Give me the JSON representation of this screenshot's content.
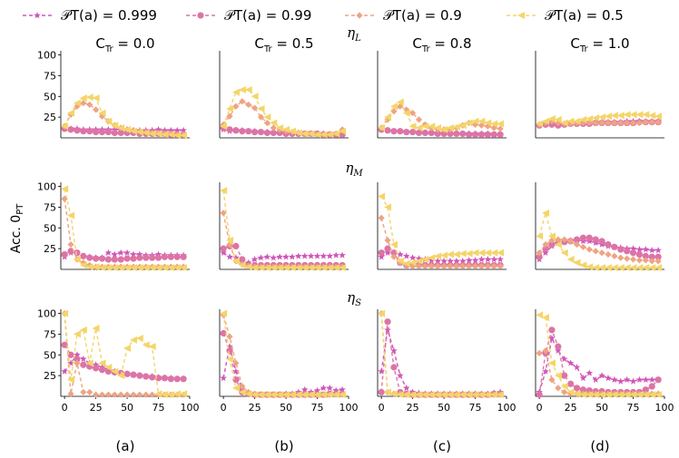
{
  "chart_data": {
    "type": "line",
    "ylabel": "Acc. 0_PT",
    "legend_position": "top",
    "x": [
      0,
      5,
      10,
      15,
      20,
      25,
      30,
      35,
      40,
      45,
      50,
      55,
      60,
      65,
      70,
      75,
      80,
      85,
      90,
      95
    ],
    "xlim": [
      -3,
      100
    ],
    "xticks": [
      0,
      25,
      50,
      75,
      100
    ],
    "ylim": [
      0,
      105
    ],
    "yticks": [
      25,
      50,
      75,
      100
    ],
    "series_meta": [
      {
        "name": "P_T(a) = 0.999",
        "legend_label": "𝒫T(a) = 0.999",
        "color": "#d056b8",
        "marker": "star"
      },
      {
        "name": "P_T(a) = 0.99",
        "legend_label": "𝒫T(a) = 0.99",
        "color": "#dc74a6",
        "marker": "circle"
      },
      {
        "name": "P_T(a) = 0.9",
        "legend_label": "𝒫T(a) = 0.9",
        "color": "#eea483",
        "marker": "diamond"
      },
      {
        "name": "P_T(a) = 0.5",
        "legend_label": "𝒫T(a) = 0.5",
        "color": "#f4d569",
        "marker": "triangle-left"
      }
    ],
    "column_titles": [
      "C_Tr = 0.0",
      "C_Tr = 0.5",
      "C_Tr = 0.8",
      "C_Tr = 1.0"
    ],
    "row_titles": [
      "η_L",
      "η_M",
      "η_S"
    ],
    "panel_labels": [
      "(a)",
      "(b)",
      "(c)",
      "(d)"
    ],
    "panels": [
      [
        [
          [
            12,
            11,
            11,
            10,
            10,
            10,
            10,
            10,
            10,
            10,
            10,
            9,
            9,
            9,
            9,
            10,
            9,
            9,
            9,
            9
          ],
          [
            11,
            10,
            9,
            8,
            8,
            7,
            7,
            7,
            6,
            6,
            6,
            6,
            5,
            5,
            5,
            5,
            5,
            4,
            4,
            4
          ],
          [
            14,
            28,
            38,
            42,
            40,
            34,
            26,
            20,
            15,
            12,
            10,
            9,
            8,
            7,
            6,
            6,
            5,
            5,
            4,
            4
          ],
          [
            14,
            30,
            42,
            48,
            49,
            48,
            30,
            20,
            15,
            12,
            10,
            8,
            7,
            6,
            5,
            5,
            4,
            4,
            3,
            3
          ]
        ],
        [
          [
            10,
            8,
            9,
            9,
            8,
            8,
            7,
            7,
            6,
            6,
            6,
            6,
            5,
            5,
            5,
            5,
            5,
            4,
            4,
            4
          ],
          [
            12,
            10,
            9,
            8,
            8,
            7,
            7,
            6,
            6,
            6,
            5,
            5,
            5,
            5,
            5,
            5,
            4,
            4,
            4,
            4
          ],
          [
            16,
            26,
            38,
            44,
            40,
            36,
            25,
            18,
            12,
            10,
            8,
            7,
            6,
            5,
            5,
            4,
            4,
            4,
            5,
            10
          ],
          [
            14,
            35,
            55,
            58,
            58,
            50,
            35,
            25,
            18,
            12,
            10,
            8,
            6,
            5,
            5,
            4,
            4,
            4,
            5,
            8
          ]
        ],
        [
          [
            10,
            9,
            8,
            8,
            7,
            7,
            7,
            6,
            6,
            6,
            5,
            5,
            5,
            5,
            5,
            5,
            5,
            5,
            4,
            4
          ],
          [
            10,
            9,
            8,
            8,
            7,
            7,
            6,
            6,
            6,
            5,
            5,
            5,
            5,
            5,
            4,
            4,
            4,
            4,
            4,
            4
          ],
          [
            12,
            22,
            32,
            38,
            34,
            30,
            22,
            16,
            12,
            10,
            10,
            10,
            12,
            15,
            18,
            16,
            15,
            14,
            12,
            11
          ],
          [
            12,
            25,
            38,
            43,
            30,
            14,
            12,
            14,
            14,
            12,
            10,
            12,
            13,
            15,
            18,
            20,
            20,
            18,
            17,
            17
          ]
        ],
        [
          [
            15,
            17,
            17,
            16,
            17,
            18,
            18,
            18,
            19,
            19,
            19,
            19,
            19,
            19,
            20,
            20,
            20,
            20,
            20,
            20
          ],
          [
            15,
            16,
            16,
            15,
            16,
            17,
            17,
            17,
            17,
            18,
            18,
            18,
            18,
            18,
            18,
            18,
            19,
            19,
            19,
            19
          ],
          [
            16,
            18,
            20,
            18,
            17,
            17,
            18,
            18,
            18,
            18,
            18,
            18,
            18,
            18,
            18,
            18,
            18,
            19,
            19,
            19
          ],
          [
            17,
            20,
            23,
            22,
            18,
            20,
            20,
            22,
            23,
            24,
            25,
            26,
            27,
            27,
            28,
            28,
            28,
            28,
            27,
            26
          ]
        ]
      ],
      [
        [
          [
            15,
            20,
            19,
            16,
            15,
            14,
            14,
            20,
            18,
            20,
            20,
            18,
            18,
            17,
            17,
            18,
            17,
            17,
            17,
            17
          ],
          [
            18,
            22,
            20,
            16,
            14,
            13,
            13,
            12,
            12,
            12,
            13,
            13,
            14,
            14,
            14,
            14,
            15,
            15,
            15,
            15
          ],
          [
            85,
            30,
            12,
            8,
            5,
            3,
            3,
            3,
            3,
            3,
            3,
            3,
            3,
            3,
            3,
            3,
            3,
            3,
            3,
            3
          ],
          [
            97,
            65,
            12,
            5,
            3,
            3,
            2,
            2,
            2,
            2,
            2,
            2,
            2,
            2,
            2,
            2,
            2,
            2,
            2,
            2
          ]
        ],
        [
          [
            20,
            15,
            14,
            10,
            8,
            12,
            14,
            15,
            14,
            15,
            15,
            15,
            16,
            16,
            16,
            16,
            16,
            16,
            17,
            17
          ],
          [
            25,
            28,
            28,
            12,
            5,
            5,
            5,
            5,
            5,
            5,
            5,
            5,
            5,
            5,
            5,
            5,
            5,
            5,
            5,
            5
          ],
          [
            68,
            30,
            10,
            6,
            4,
            3,
            3,
            3,
            3,
            3,
            3,
            3,
            3,
            3,
            3,
            3,
            3,
            3,
            3,
            3
          ],
          [
            95,
            35,
            10,
            5,
            3,
            2,
            2,
            2,
            2,
            2,
            2,
            2,
            2,
            2,
            2,
            2,
            2,
            2,
            2,
            2
          ]
        ],
        [
          [
            15,
            20,
            20,
            18,
            16,
            14,
            13,
            12,
            11,
            10,
            10,
            10,
            10,
            10,
            11,
            11,
            12,
            12,
            12,
            12
          ],
          [
            20,
            25,
            20,
            8,
            5,
            5,
            5,
            5,
            5,
            5,
            5,
            5,
            5,
            5,
            5,
            5,
            5,
            5,
            5,
            5
          ],
          [
            62,
            35,
            15,
            8,
            5,
            4,
            4,
            4,
            4,
            4,
            4,
            4,
            4,
            4,
            4,
            4,
            4,
            4,
            4,
            4
          ],
          [
            88,
            75,
            30,
            10,
            7,
            8,
            10,
            12,
            14,
            16,
            17,
            18,
            18,
            19,
            19,
            20,
            20,
            20,
            20,
            20
          ]
        ],
        [
          [
            12,
            20,
            28,
            32,
            34,
            35,
            35,
            34,
            34,
            32,
            30,
            28,
            27,
            26,
            25,
            25,
            24,
            24,
            23,
            23
          ],
          [
            15,
            25,
            30,
            32,
            33,
            34,
            36,
            38,
            38,
            36,
            34,
            30,
            27,
            24,
            22,
            20,
            18,
            16,
            15,
            15
          ],
          [
            20,
            30,
            35,
            36,
            36,
            34,
            30,
            27,
            24,
            22,
            20,
            18,
            16,
            14,
            13,
            12,
            11,
            11,
            10,
            10
          ],
          [
            40,
            68,
            40,
            30,
            20,
            12,
            8,
            5,
            3,
            2,
            2,
            2,
            2,
            2,
            2,
            2,
            2,
            2,
            2,
            2
          ]
        ]
      ],
      [
        [
          [
            30,
            40,
            50,
            45,
            40,
            38,
            35,
            32,
            30,
            28,
            27,
            26,
            25,
            24,
            24,
            23,
            22,
            22,
            21,
            21
          ],
          [
            62,
            50,
            45,
            38,
            36,
            34,
            32,
            30,
            29,
            28,
            27,
            26,
            25,
            24,
            23,
            22,
            22,
            21,
            21,
            21
          ],
          [
            100,
            3,
            40,
            5,
            5,
            2,
            2,
            2,
            2,
            2,
            2,
            2,
            2,
            2,
            2,
            2,
            2,
            2,
            2,
            2
          ],
          [
            100,
            20,
            75,
            80,
            40,
            82,
            40,
            35,
            30,
            25,
            58,
            68,
            70,
            62,
            60,
            3,
            2,
            2,
            3,
            3
          ]
        ],
        [
          [
            22,
            60,
            30,
            8,
            3,
            2,
            2,
            2,
            2,
            2,
            3,
            3,
            5,
            8,
            5,
            7,
            10,
            10,
            7,
            8
          ],
          [
            76,
            55,
            20,
            5,
            3,
            2,
            2,
            2,
            2,
            2,
            2,
            2,
            2,
            2,
            2,
            2,
            2,
            3,
            3,
            3
          ],
          [
            98,
            72,
            40,
            12,
            5,
            3,
            2,
            2,
            2,
            2,
            2,
            2,
            2,
            2,
            2,
            2,
            2,
            2,
            2,
            2
          ],
          [
            100,
            45,
            10,
            5,
            3,
            2,
            2,
            2,
            2,
            2,
            2,
            2,
            2,
            2,
            2,
            2,
            2,
            2,
            2,
            2
          ]
        ],
        [
          [
            30,
            80,
            55,
            25,
            10,
            5,
            4,
            3,
            3,
            3,
            3,
            3,
            3,
            3,
            3,
            3,
            3,
            3,
            4,
            5
          ],
          [
            5,
            90,
            35,
            5,
            3,
            2,
            2,
            2,
            2,
            2,
            2,
            2,
            2,
            2,
            2,
            2,
            2,
            2,
            3,
            3
          ],
          [
            100,
            5,
            3,
            3,
            2,
            2,
            2,
            2,
            2,
            2,
            2,
            2,
            2,
            2,
            2,
            2,
            2,
            2,
            2,
            2
          ],
          [
            100,
            5,
            3,
            2,
            2,
            2,
            2,
            2,
            2,
            2,
            2,
            2,
            2,
            2,
            2,
            2,
            2,
            2,
            2,
            2
          ]
        ],
        [
          [
            5,
            30,
            70,
            55,
            45,
            40,
            35,
            22,
            28,
            20,
            25,
            22,
            20,
            18,
            20,
            18,
            20,
            20,
            20,
            20
          ],
          [
            2,
            52,
            80,
            60,
            25,
            15,
            10,
            8,
            7,
            6,
            6,
            5,
            5,
            5,
            5,
            5,
            5,
            8,
            12,
            20
          ],
          [
            52,
            55,
            20,
            10,
            5,
            3,
            3,
            3,
            3,
            3,
            3,
            3,
            3,
            3,
            3,
            3,
            3,
            3,
            3,
            3
          ],
          [
            98,
            95,
            40,
            25,
            12,
            5,
            3,
            2,
            2,
            2,
            2,
            2,
            2,
            2,
            2,
            2,
            2,
            2,
            2,
            2
          ]
        ]
      ]
    ]
  }
}
